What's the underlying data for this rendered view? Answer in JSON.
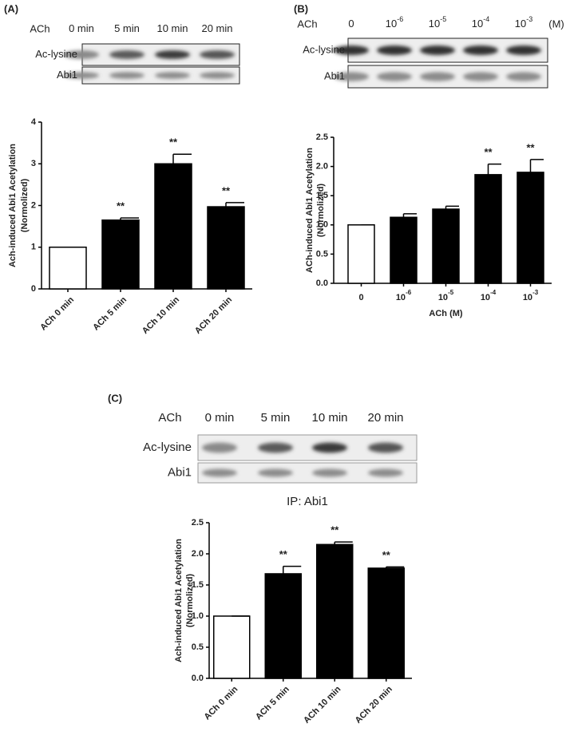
{
  "panels": [
    {
      "label": "(A)",
      "blot": {
        "treatment": "ACh",
        "lanes": [
          "0 min",
          "5 min",
          "10 min",
          "20 min"
        ],
        "rows": [
          "Ac-lysine",
          "Abi1"
        ]
      }
    },
    {
      "label": "(B)",
      "blot": {
        "treatment": "ACh",
        "lanes": [
          "0",
          "10",
          "10",
          "10",
          "10"
        ],
        "lane_exponents": [
          null,
          "-6",
          "-5",
          "-4",
          "-3"
        ],
        "unit": "(M)",
        "rows": [
          "Ac-lysine",
          "Abi1"
        ]
      }
    },
    {
      "label": "(C)",
      "blot": {
        "treatment": "ACh",
        "lanes": [
          "0 min",
          "5 min",
          "10 min",
          "20 min"
        ],
        "rows": [
          "Ac-lysine",
          "Abi1"
        ],
        "caption": "IP: Abi1"
      }
    }
  ],
  "chart_data": [
    {
      "type": "bar",
      "y_label": [
        "Ach-induced Abi1 Acetylation",
        "(Normolized)"
      ],
      "categories": [
        "ACh 0 min",
        "ACh 5 min",
        "ACh 10 min",
        "ACh 20 min"
      ],
      "values": [
        1,
        1.65,
        3.0,
        1.97
      ],
      "errors": [
        0,
        0.05,
        0.23,
        0.1
      ],
      "colors": [
        "#ffffff",
        "#000000",
        "#000000",
        "#000000"
      ],
      "annotations": [
        null,
        "**",
        "**",
        "**"
      ],
      "ylim": [
        0,
        4
      ],
      "yticks": [
        0,
        1,
        2,
        3,
        4
      ]
    },
    {
      "type": "bar",
      "y_label": [
        "ACh-induced Abi1 Acetylation",
        "(Normolized)"
      ],
      "x_label": "ACh (M)",
      "categories": [
        "0",
        "10",
        "10",
        "10",
        "10"
      ],
      "category_exponents": [
        null,
        "-6",
        "-5",
        "-4",
        "-3"
      ],
      "values": [
        1,
        1.13,
        1.27,
        1.86,
        1.9
      ],
      "errors": [
        0,
        0.06,
        0.05,
        0.18,
        0.22
      ],
      "colors": [
        "#ffffff",
        "#000000",
        "#000000",
        "#000000",
        "#000000"
      ],
      "annotations": [
        null,
        null,
        null,
        "**",
        "**"
      ],
      "ylim": [
        0,
        2.5
      ],
      "yticks": [
        {
          "value": 0,
          "label": "0.0"
        },
        {
          "value": 0.5,
          "label": "0.5"
        },
        {
          "value": 1,
          "label": "1.0"
        },
        {
          "value": 1.5,
          "label": "1.5"
        },
        {
          "value": 2,
          "label": "2.0"
        },
        {
          "value": 2.5,
          "label": "2.5"
        }
      ]
    },
    {
      "type": "bar",
      "y_label": [
        "Ach-induced Abi1 Acetylation",
        "(Normolized)"
      ],
      "categories": [
        "ACh 0 min",
        "ACh 5 min",
        "ACh 10 min",
        "ACh 20 min"
      ],
      "values": [
        1,
        1.68,
        2.15,
        1.77
      ],
      "errors": [
        0,
        0.12,
        0.04,
        0.02
      ],
      "colors": [
        "#ffffff",
        "#000000",
        "#000000",
        "#000000"
      ],
      "annotations": [
        null,
        "**",
        "**",
        "**"
      ],
      "ylim": [
        0,
        2.5
      ],
      "yticks": [
        {
          "value": 0,
          "label": "0.0"
        },
        {
          "value": 0.5,
          "label": "0.5"
        },
        {
          "value": 1,
          "label": "1.0"
        },
        {
          "value": 1.5,
          "label": "1.5"
        },
        {
          "value": 2,
          "label": "2.0"
        },
        {
          "value": 2.5,
          "label": "2.5"
        }
      ]
    }
  ]
}
